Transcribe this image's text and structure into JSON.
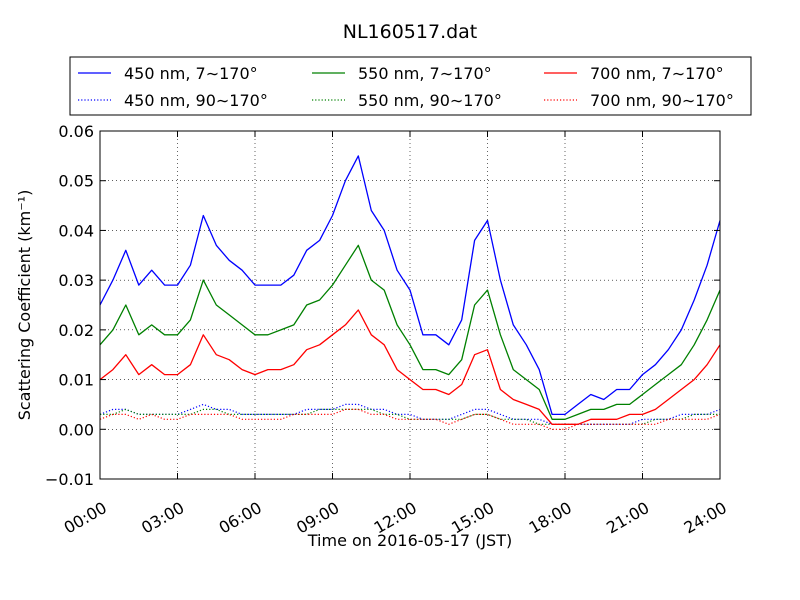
{
  "chart_data": {
    "type": "line",
    "title": "NL160517.dat",
    "xlabel": "Time on 2016-05-17 (JST)",
    "ylabel": "Scattering Coefficient (km⁻¹)",
    "xlim": [
      0,
      24
    ],
    "ylim": [
      -0.01,
      0.06
    ],
    "grid": true,
    "legend": {
      "placement": "top (above axes)",
      "columns": 3
    },
    "x_ticks": [
      {
        "v": 0,
        "label": "00:00"
      },
      {
        "v": 3,
        "label": "03:00"
      },
      {
        "v": 6,
        "label": "06:00"
      },
      {
        "v": 9,
        "label": "09:00"
      },
      {
        "v": 12,
        "label": "12:00"
      },
      {
        "v": 15,
        "label": "15:00"
      },
      {
        "v": 18,
        "label": "18:00"
      },
      {
        "v": 21,
        "label": "21:00"
      },
      {
        "v": 24,
        "label": "24:00"
      }
    ],
    "y_ticks": [
      {
        "v": -0.01,
        "label": "−0.01"
      },
      {
        "v": 0.0,
        "label": "0.00"
      },
      {
        "v": 0.01,
        "label": "0.01"
      },
      {
        "v": 0.02,
        "label": "0.02"
      },
      {
        "v": 0.03,
        "label": "0.03"
      },
      {
        "v": 0.04,
        "label": "0.04"
      },
      {
        "v": 0.05,
        "label": "0.05"
      },
      {
        "v": 0.06,
        "label": "0.06"
      }
    ],
    "x": [
      0,
      0.5,
      1,
      1.5,
      2,
      2.5,
      3,
      3.5,
      4,
      4.5,
      5,
      5.5,
      6,
      6.5,
      7,
      7.5,
      8,
      8.5,
      9,
      9.5,
      10,
      10.5,
      11,
      11.5,
      12,
      12.5,
      13,
      13.5,
      14,
      14.5,
      15,
      15.5,
      16,
      16.5,
      17,
      17.5,
      18,
      18.5,
      19,
      19.5,
      20,
      20.5,
      21,
      21.5,
      22,
      22.5,
      23,
      23.5,
      24
    ],
    "series": [
      {
        "name": "450 nm, 7∼170°",
        "color": "#0000ff",
        "style": "solid",
        "values": [
          0.025,
          0.03,
          0.036,
          0.029,
          0.032,
          0.029,
          0.029,
          0.033,
          0.043,
          0.037,
          0.034,
          0.032,
          0.029,
          0.029,
          0.029,
          0.031,
          0.036,
          0.038,
          0.043,
          0.05,
          0.055,
          0.044,
          0.04,
          0.032,
          0.028,
          0.019,
          0.019,
          0.017,
          0.022,
          0.038,
          0.042,
          0.03,
          0.021,
          0.017,
          0.012,
          0.003,
          0.003,
          0.005,
          0.007,
          0.006,
          0.008,
          0.008,
          0.011,
          0.013,
          0.016,
          0.02,
          0.026,
          0.033,
          0.042
        ]
      },
      {
        "name": "550 nm, 7∼170°",
        "color": "#008000",
        "style": "solid",
        "values": [
          0.017,
          0.02,
          0.025,
          0.019,
          0.021,
          0.019,
          0.019,
          0.022,
          0.03,
          0.025,
          0.023,
          0.021,
          0.019,
          0.019,
          0.02,
          0.021,
          0.025,
          0.026,
          0.029,
          0.033,
          0.037,
          0.03,
          0.028,
          0.021,
          0.017,
          0.012,
          0.012,
          0.011,
          0.014,
          0.025,
          0.028,
          0.019,
          0.012,
          0.01,
          0.008,
          0.002,
          0.002,
          0.003,
          0.004,
          0.004,
          0.005,
          0.005,
          0.007,
          0.009,
          0.011,
          0.013,
          0.017,
          0.022,
          0.028
        ]
      },
      {
        "name": "700 nm, 7∼170°",
        "color": "#ff0000",
        "style": "solid",
        "values": [
          0.01,
          0.012,
          0.015,
          0.011,
          0.013,
          0.011,
          0.011,
          0.013,
          0.019,
          0.015,
          0.014,
          0.012,
          0.011,
          0.012,
          0.012,
          0.013,
          0.016,
          0.017,
          0.019,
          0.021,
          0.024,
          0.019,
          0.017,
          0.012,
          0.01,
          0.008,
          0.008,
          0.007,
          0.009,
          0.015,
          0.016,
          0.008,
          0.006,
          0.005,
          0.004,
          0.001,
          0.001,
          0.001,
          0.002,
          0.002,
          0.002,
          0.003,
          0.003,
          0.004,
          0.006,
          0.008,
          0.01,
          0.013,
          0.017
        ]
      },
      {
        "name": "450 nm, 90∼170°",
        "color": "#0000ff",
        "style": "dotted",
        "values": [
          0.003,
          0.004,
          0.004,
          0.003,
          0.003,
          0.003,
          0.003,
          0.004,
          0.005,
          0.004,
          0.004,
          0.003,
          0.003,
          0.003,
          0.003,
          0.003,
          0.004,
          0.004,
          0.004,
          0.005,
          0.005,
          0.004,
          0.004,
          0.003,
          0.003,
          0.002,
          0.002,
          0.002,
          0.003,
          0.004,
          0.004,
          0.003,
          0.002,
          0.002,
          0.002,
          0.001,
          0.001,
          0.001,
          0.001,
          0.001,
          0.001,
          0.001,
          0.002,
          0.002,
          0.002,
          0.003,
          0.003,
          0.003,
          0.004
        ]
      },
      {
        "name": "550 nm, 90∼170°",
        "color": "#008000",
        "style": "dotted",
        "values": [
          0.003,
          0.003,
          0.004,
          0.003,
          0.003,
          0.003,
          0.003,
          0.003,
          0.004,
          0.004,
          0.003,
          0.003,
          0.003,
          0.003,
          0.003,
          0.003,
          0.003,
          0.004,
          0.004,
          0.004,
          0.004,
          0.004,
          0.003,
          0.003,
          0.002,
          0.002,
          0.002,
          0.002,
          0.002,
          0.003,
          0.003,
          0.002,
          0.002,
          0.002,
          0.001,
          0.001,
          0.001,
          0.001,
          0.001,
          0.001,
          0.001,
          0.001,
          0.001,
          0.002,
          0.002,
          0.002,
          0.003,
          0.003,
          0.003
        ]
      },
      {
        "name": "700 nm, 90∼170°",
        "color": "#ff0000",
        "style": "dotted",
        "values": [
          0.002,
          0.003,
          0.003,
          0.002,
          0.003,
          0.002,
          0.002,
          0.003,
          0.003,
          0.003,
          0.003,
          0.002,
          0.002,
          0.002,
          0.002,
          0.003,
          0.003,
          0.003,
          0.003,
          0.004,
          0.004,
          0.003,
          0.003,
          0.002,
          0.002,
          0.002,
          0.002,
          0.001,
          0.002,
          0.003,
          0.003,
          0.002,
          0.001,
          0.001,
          0.001,
          0.0,
          0.0,
          0.001,
          0.001,
          0.001,
          0.001,
          0.001,
          0.001,
          0.001,
          0.002,
          0.002,
          0.002,
          0.002,
          0.003
        ]
      }
    ]
  }
}
